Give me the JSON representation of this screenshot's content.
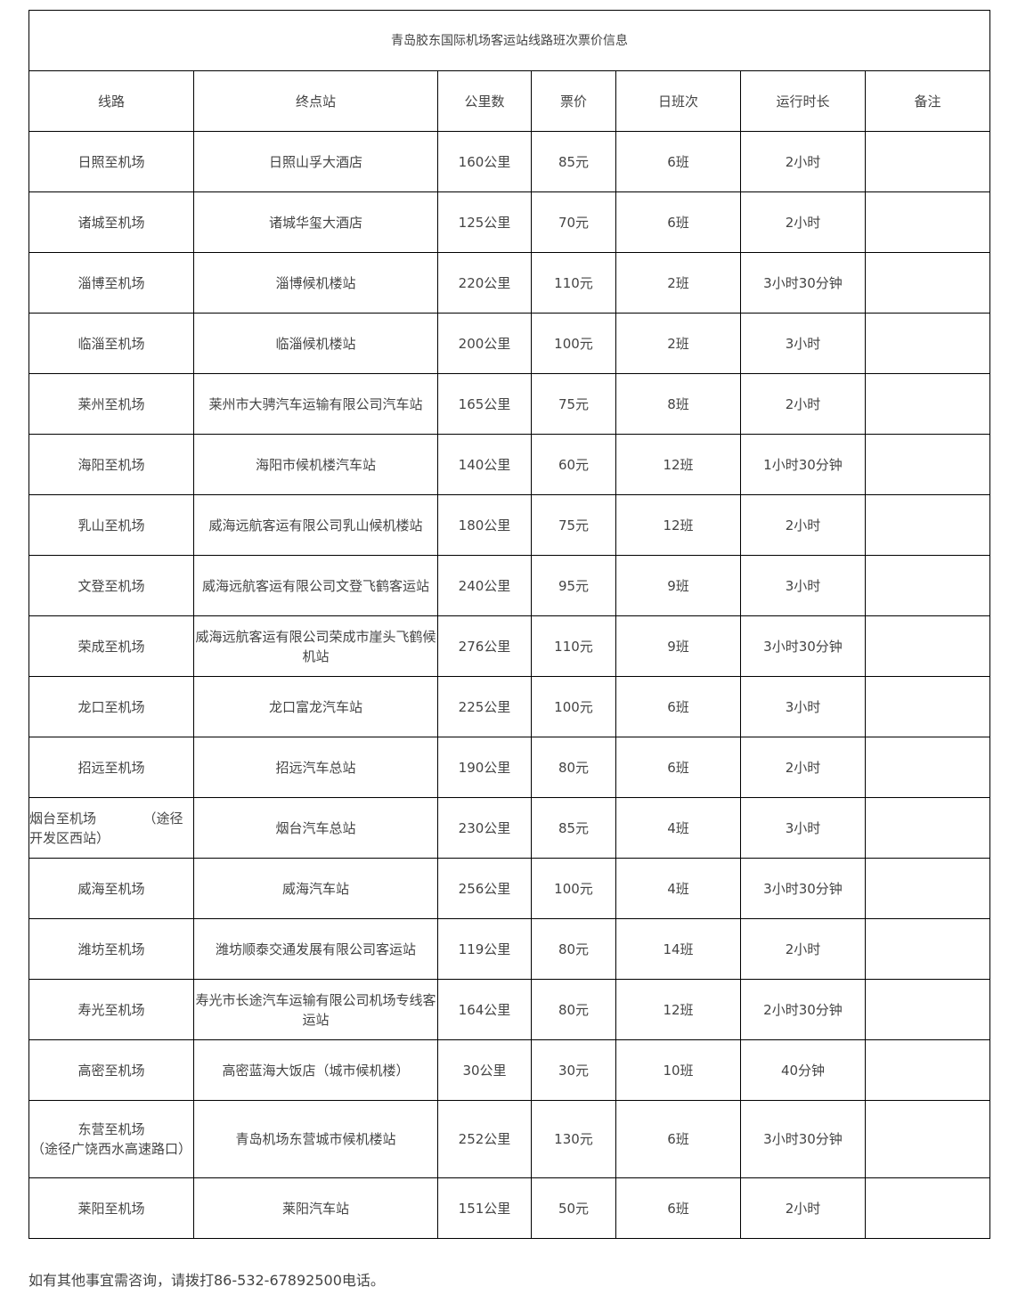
{
  "title": "青岛胶东国际机场客运站线路班次票价信息",
  "headers": [
    "线路",
    "终点站",
    "公里数",
    "票价",
    "日班次",
    "运行时长",
    "备注"
  ],
  "rows": [
    [
      "日照至机场",
      "日照山孚大酒店",
      "160公里",
      "85元",
      "6班",
      "2小时",
      ""
    ],
    [
      "诸城至机场",
      "诸城华玺大酒店",
      "125公里",
      "70元",
      "6班",
      "2小时",
      ""
    ],
    [
      "淄博至机场",
      "淄博候机楼站",
      "220公里",
      "110元",
      "2班",
      "3小时30分钟",
      ""
    ],
    [
      "临淄至机场",
      "临淄候机楼站",
      "200公里",
      "100元",
      "2班",
      "3小时",
      ""
    ],
    [
      "莱州至机场",
      "莱州市大骋汽车运输有限公司汽车站",
      "165公里",
      "75元",
      "8班",
      "2小时",
      ""
    ],
    [
      "海阳至机场",
      "海阳市候机楼汽车站",
      "140公里",
      "60元",
      "12班",
      "1小时30分钟",
      ""
    ],
    [
      "乳山至机场",
      "威海远航客运有限公司乳山候机楼站",
      "180公里",
      "75元",
      "12班",
      "2小时",
      ""
    ],
    [
      "文登至机场",
      "威海远航客运有限公司文登飞鹤客运站",
      "240公里",
      "95元",
      "9班",
      "3小时",
      ""
    ],
    [
      "荣成至机场",
      "威海远航客运有限公司荣成市崖头飞鹤候机站",
      "276公里",
      "110元",
      "9班",
      "3小时30分钟",
      ""
    ],
    [
      "龙口至机场",
      "龙口富龙汽车站",
      "225公里",
      "100元",
      "6班",
      "3小时",
      ""
    ],
    [
      "招远至机场",
      "招远汽车总站",
      "190公里",
      "80元",
      "6班",
      "2小时",
      ""
    ],
    [
      "烟台至机场　　　　（途径开发区西站）",
      "烟台汽车总站",
      "230公里",
      "85元",
      "4班",
      "3小时",
      ""
    ],
    [
      "威海至机场",
      "威海汽车站",
      "256公里",
      "100元",
      "4班",
      "3小时30分钟",
      ""
    ],
    [
      "潍坊至机场",
      "潍坊顺泰交通发展有限公司客运站",
      "119公里",
      "80元",
      "14班",
      "2小时",
      ""
    ],
    [
      "寿光至机场",
      "寿光市长途汽车运输有限公司机场专线客运站",
      "164公里",
      "80元",
      "12班",
      "2小时30分钟",
      ""
    ],
    [
      "高密至机场",
      "高密蓝海大饭店（城市候机楼）",
      "30公里",
      "30元",
      "10班",
      "40分钟",
      ""
    ],
    [
      "东营至机场\n（途径广饶西水高速路口）",
      "青岛机场东营城市候机楼站",
      "252公里",
      "130元",
      "6班",
      "3小时30分钟",
      ""
    ],
    [
      "莱阳至机场",
      "莱阳汽车站",
      "151公里",
      "50元",
      "6班",
      "2小时",
      ""
    ]
  ],
  "footer": "如有其他事宜需咨询，请拨打86-532-67892500电话。"
}
